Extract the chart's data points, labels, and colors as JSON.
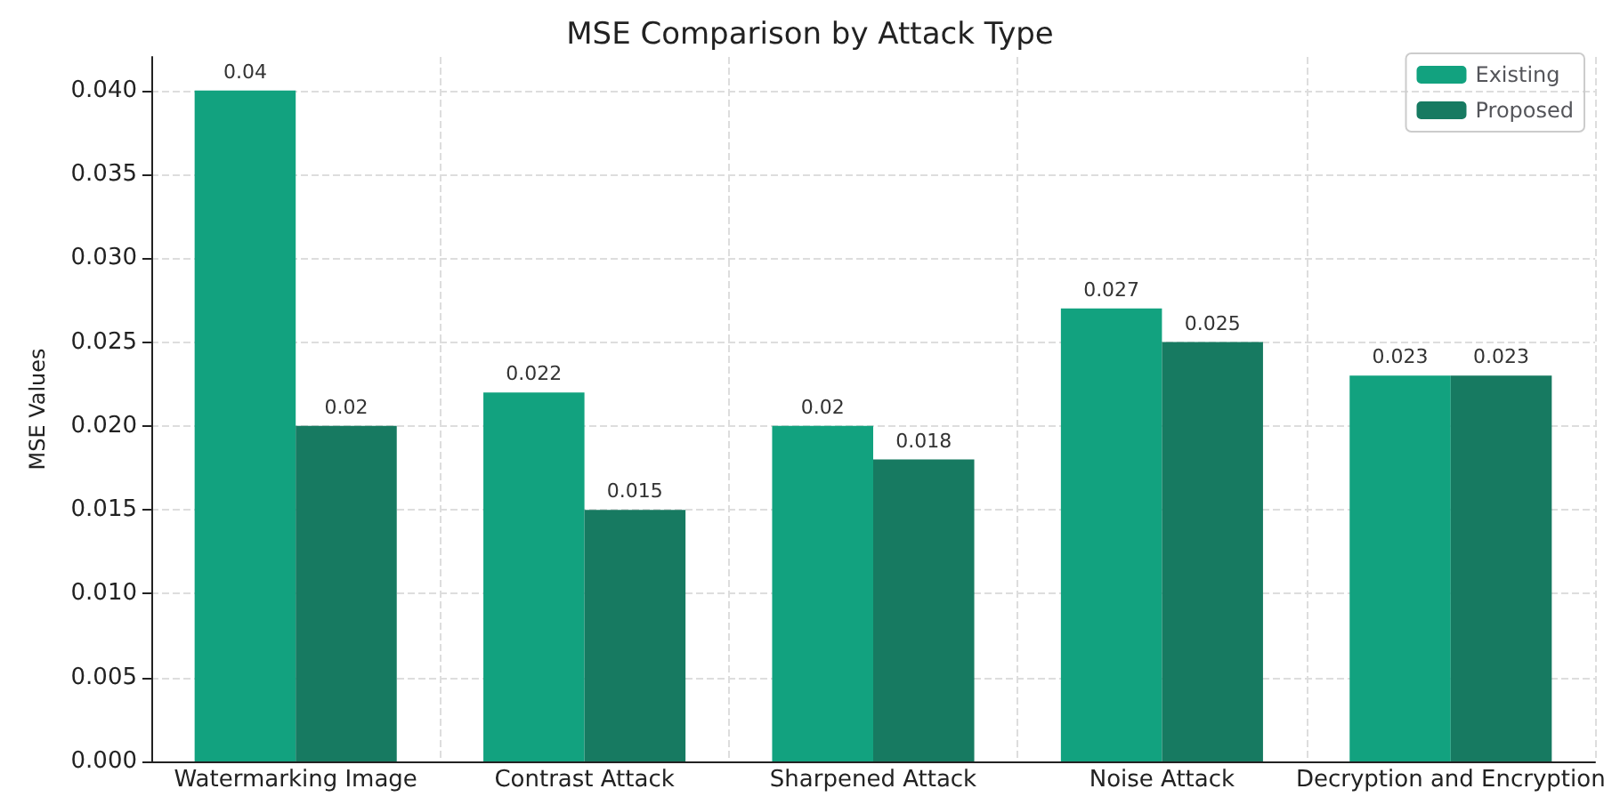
{
  "chart_data": {
    "type": "bar",
    "title": "MSE Comparison by Attack Type",
    "ylabel": "MSE Values",
    "categories": [
      "Watermarking Image",
      "Contrast Attack",
      "Sharpened Attack",
      "Noise Attack",
      "Decryption and Encryption"
    ],
    "series": [
      {
        "name": "Existing",
        "color": "#12a27f",
        "values": [
          0.04,
          0.022,
          0.02,
          0.027,
          0.023
        ]
      },
      {
        "name": "Proposed",
        "color": "#177a61",
        "values": [
          0.02,
          0.015,
          0.018,
          0.025,
          0.023
        ]
      }
    ],
    "ylim": [
      0,
      0.042
    ],
    "yticks": [
      {
        "value": 0,
        "label": "0.000"
      },
      {
        "value": 0.005,
        "label": "0.005"
      },
      {
        "value": 0.01,
        "label": "0.010"
      },
      {
        "value": 0.015,
        "label": "0.015"
      },
      {
        "value": 0.02,
        "label": "0.020"
      },
      {
        "value": 0.025,
        "label": "0.025"
      },
      {
        "value": 0.03,
        "label": "0.030"
      },
      {
        "value": 0.035,
        "label": "0.035"
      },
      {
        "value": 0.04,
        "label": "0.040"
      }
    ],
    "grid": true,
    "legend": "top right",
    "data_labels": true
  }
}
